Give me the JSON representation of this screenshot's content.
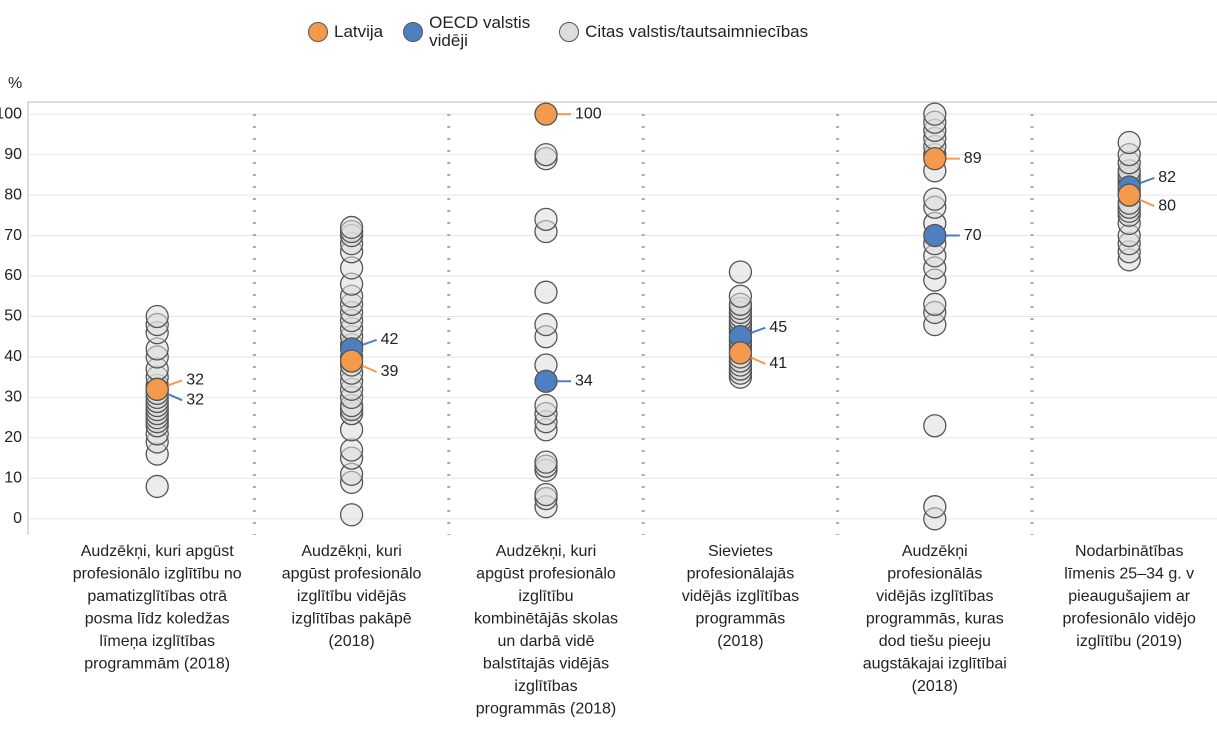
{
  "chart_data": {
    "type": "strip",
    "ylabel": "%",
    "ylim": [
      -4,
      103
    ],
    "yticks": [
      0,
      10,
      20,
      30,
      40,
      50,
      60,
      70,
      80,
      90,
      100
    ],
    "grid": true,
    "legend": "top",
    "categories": [
      [
        "Audzēkņi, kuri apgūst",
        "profesionālo izglītību no",
        "pamatizglītības otrā",
        "posma līdz koledžas",
        "līmeņa izglītības",
        "programmām (2018)"
      ],
      [
        "Audzēkņi, kuri",
        "apgūst profesionālo",
        "izglītību vidējās",
        "izglītības pakāpē",
        "(2018)"
      ],
      [
        "Audzēkņi, kuri",
        "apgūst profesionālo",
        "izglītību",
        "kombinētājās skolas",
        "un darbā vidē",
        "balstītajās vidējās",
        "izglītības",
        "programmās (2018)"
      ],
      [
        "Sievietes",
        "profesionālajās",
        "vidējās  izglītības",
        "programmās",
        "(2018)"
      ],
      [
        "Audzēkņi",
        "profesionālās",
        "vidējās izglītības",
        "programmās, kuras",
        "dod tiešu pieeju",
        "augstākajai izglītībai",
        "(2018)"
      ],
      [
        "Nodarbinātības",
        "līmenis 25–34 g. v",
        "pieaugušajiem ar",
        "profesionālo vidējo",
        "izglītību  (2019)"
      ]
    ],
    "series": [
      {
        "name": "Latvija",
        "color": "#f39a4c",
        "values": [
          32,
          39,
          100,
          41,
          89,
          80
        ]
      },
      {
        "name": "OECD valstis vidēji",
        "color": "#4d7fc1",
        "values": [
          32,
          42,
          34,
          45,
          70,
          82
        ]
      },
      {
        "name": "Citas valstis/tautsaimniecības",
        "color": "#dcdcdc",
        "values": [
          [
            8,
            16,
            19,
            21,
            23,
            24,
            25,
            26,
            27,
            28,
            29,
            30,
            31,
            33,
            35,
            37,
            40,
            42,
            46,
            48,
            50
          ],
          [
            1,
            9,
            11,
            15,
            17,
            22,
            26,
            27,
            28,
            30,
            32,
            34,
            36,
            38,
            40,
            43,
            45,
            47,
            49,
            51,
            53,
            55,
            58,
            62,
            66,
            68,
            70,
            71,
            72
          ],
          [
            3,
            5,
            6,
            12,
            13,
            14,
            22,
            24,
            26,
            28,
            38,
            45,
            48,
            56,
            71,
            74,
            89,
            90
          ],
          [
            35,
            36,
            37,
            38,
            39,
            40,
            42,
            43,
            44,
            46,
            47,
            48,
            49,
            50,
            51,
            52,
            53,
            55,
            61
          ],
          [
            0,
            3,
            23,
            48,
            51,
            53,
            59,
            62,
            65,
            68,
            73,
            77,
            79,
            86,
            90,
            92,
            94,
            96,
            98,
            100
          ],
          [
            64,
            66,
            68,
            70,
            73,
            75,
            76,
            77,
            78,
            80,
            81,
            83,
            84,
            85,
            86,
            88,
            90,
            93
          ]
        ]
      }
    ]
  }
}
